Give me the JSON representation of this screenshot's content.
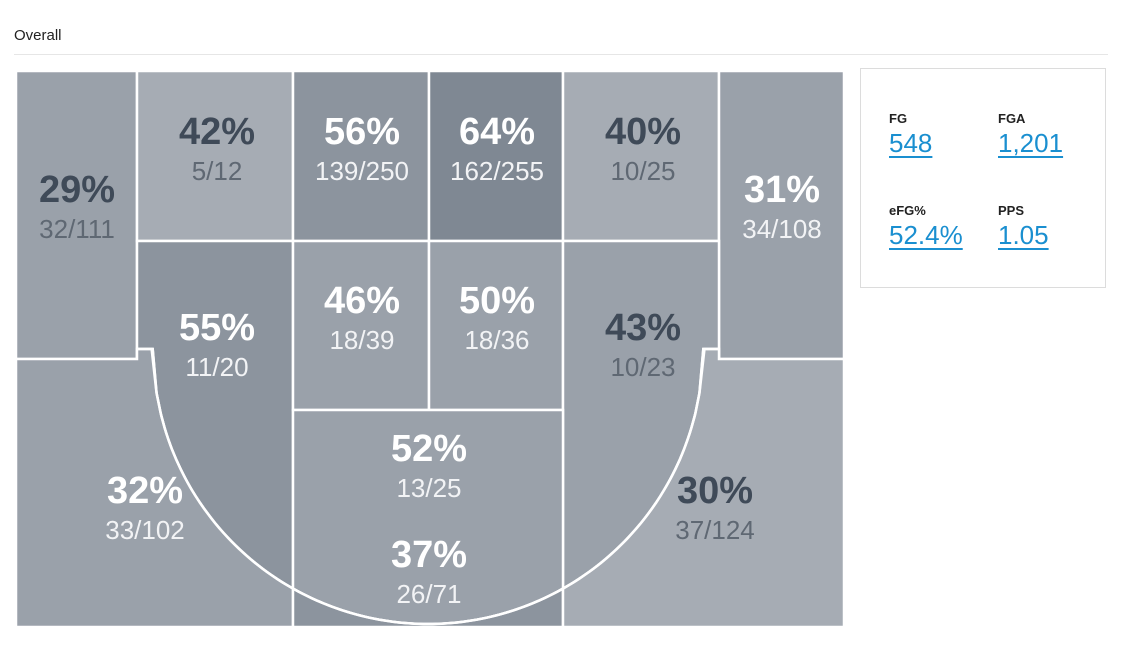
{
  "page": {
    "title": "Overall"
  },
  "colors": {
    "zone": "#9aa1aa",
    "zone_dark": "#7f8893",
    "zone_mid": "#8c949e",
    "zone_light": "#a6acb4",
    "text_dark": "#3f4a58",
    "text_light": "#ffffff",
    "link": "#1a8fd0"
  },
  "zones": [
    {
      "id": "left-corner-mid",
      "pct": "29%",
      "frac": "32/111",
      "fill": "#9aa1aa",
      "text": "dark"
    },
    {
      "id": "left-elbow-long",
      "pct": "42%",
      "frac": "5/12",
      "fill": "#a6acb4",
      "text": "dark"
    },
    {
      "id": "paint-left-top",
      "pct": "56%",
      "frac": "139/250",
      "fill": "#8c949e",
      "text": "light"
    },
    {
      "id": "paint-right-top",
      "pct": "64%",
      "frac": "162/255",
      "fill": "#7f8893",
      "text": "light"
    },
    {
      "id": "right-elbow-long",
      "pct": "40%",
      "frac": "10/25",
      "fill": "#a6acb4",
      "text": "dark"
    },
    {
      "id": "right-corner-mid",
      "pct": "31%",
      "frac": "34/108",
      "fill": "#9aa1aa",
      "text": "light"
    },
    {
      "id": "left-wing-mid",
      "pct": "55%",
      "frac": "11/20",
      "fill": "#8c949e",
      "text": "light"
    },
    {
      "id": "paint-left-mid",
      "pct": "46%",
      "frac": "18/39",
      "fill": "#9aa1aa",
      "text": "light"
    },
    {
      "id": "paint-right-mid",
      "pct": "50%",
      "frac": "18/36",
      "fill": "#9aa1aa",
      "text": "light"
    },
    {
      "id": "right-wing-mid",
      "pct": "43%",
      "frac": "10/23",
      "fill": "#9aa1aa",
      "text": "dark"
    },
    {
      "id": "top-key",
      "pct": "52%",
      "frac": "13/25",
      "fill": "#9aa1aa",
      "text": "light"
    },
    {
      "id": "left-three",
      "pct": "32%",
      "frac": "33/102",
      "fill": "#9aa1aa",
      "text": "light"
    },
    {
      "id": "top-three",
      "pct": "37%",
      "frac": "26/71",
      "fill": "#8c949e",
      "text": "light"
    },
    {
      "id": "right-three",
      "pct": "30%",
      "frac": "37/124",
      "fill": "#a6acb4",
      "text": "dark"
    }
  ],
  "stats": [
    {
      "label": "FG",
      "value": "548"
    },
    {
      "label": "FGA",
      "value": "1,201"
    },
    {
      "label": "eFG%",
      "value": "52.4%"
    },
    {
      "label": "PPS",
      "value": "1.05"
    }
  ]
}
